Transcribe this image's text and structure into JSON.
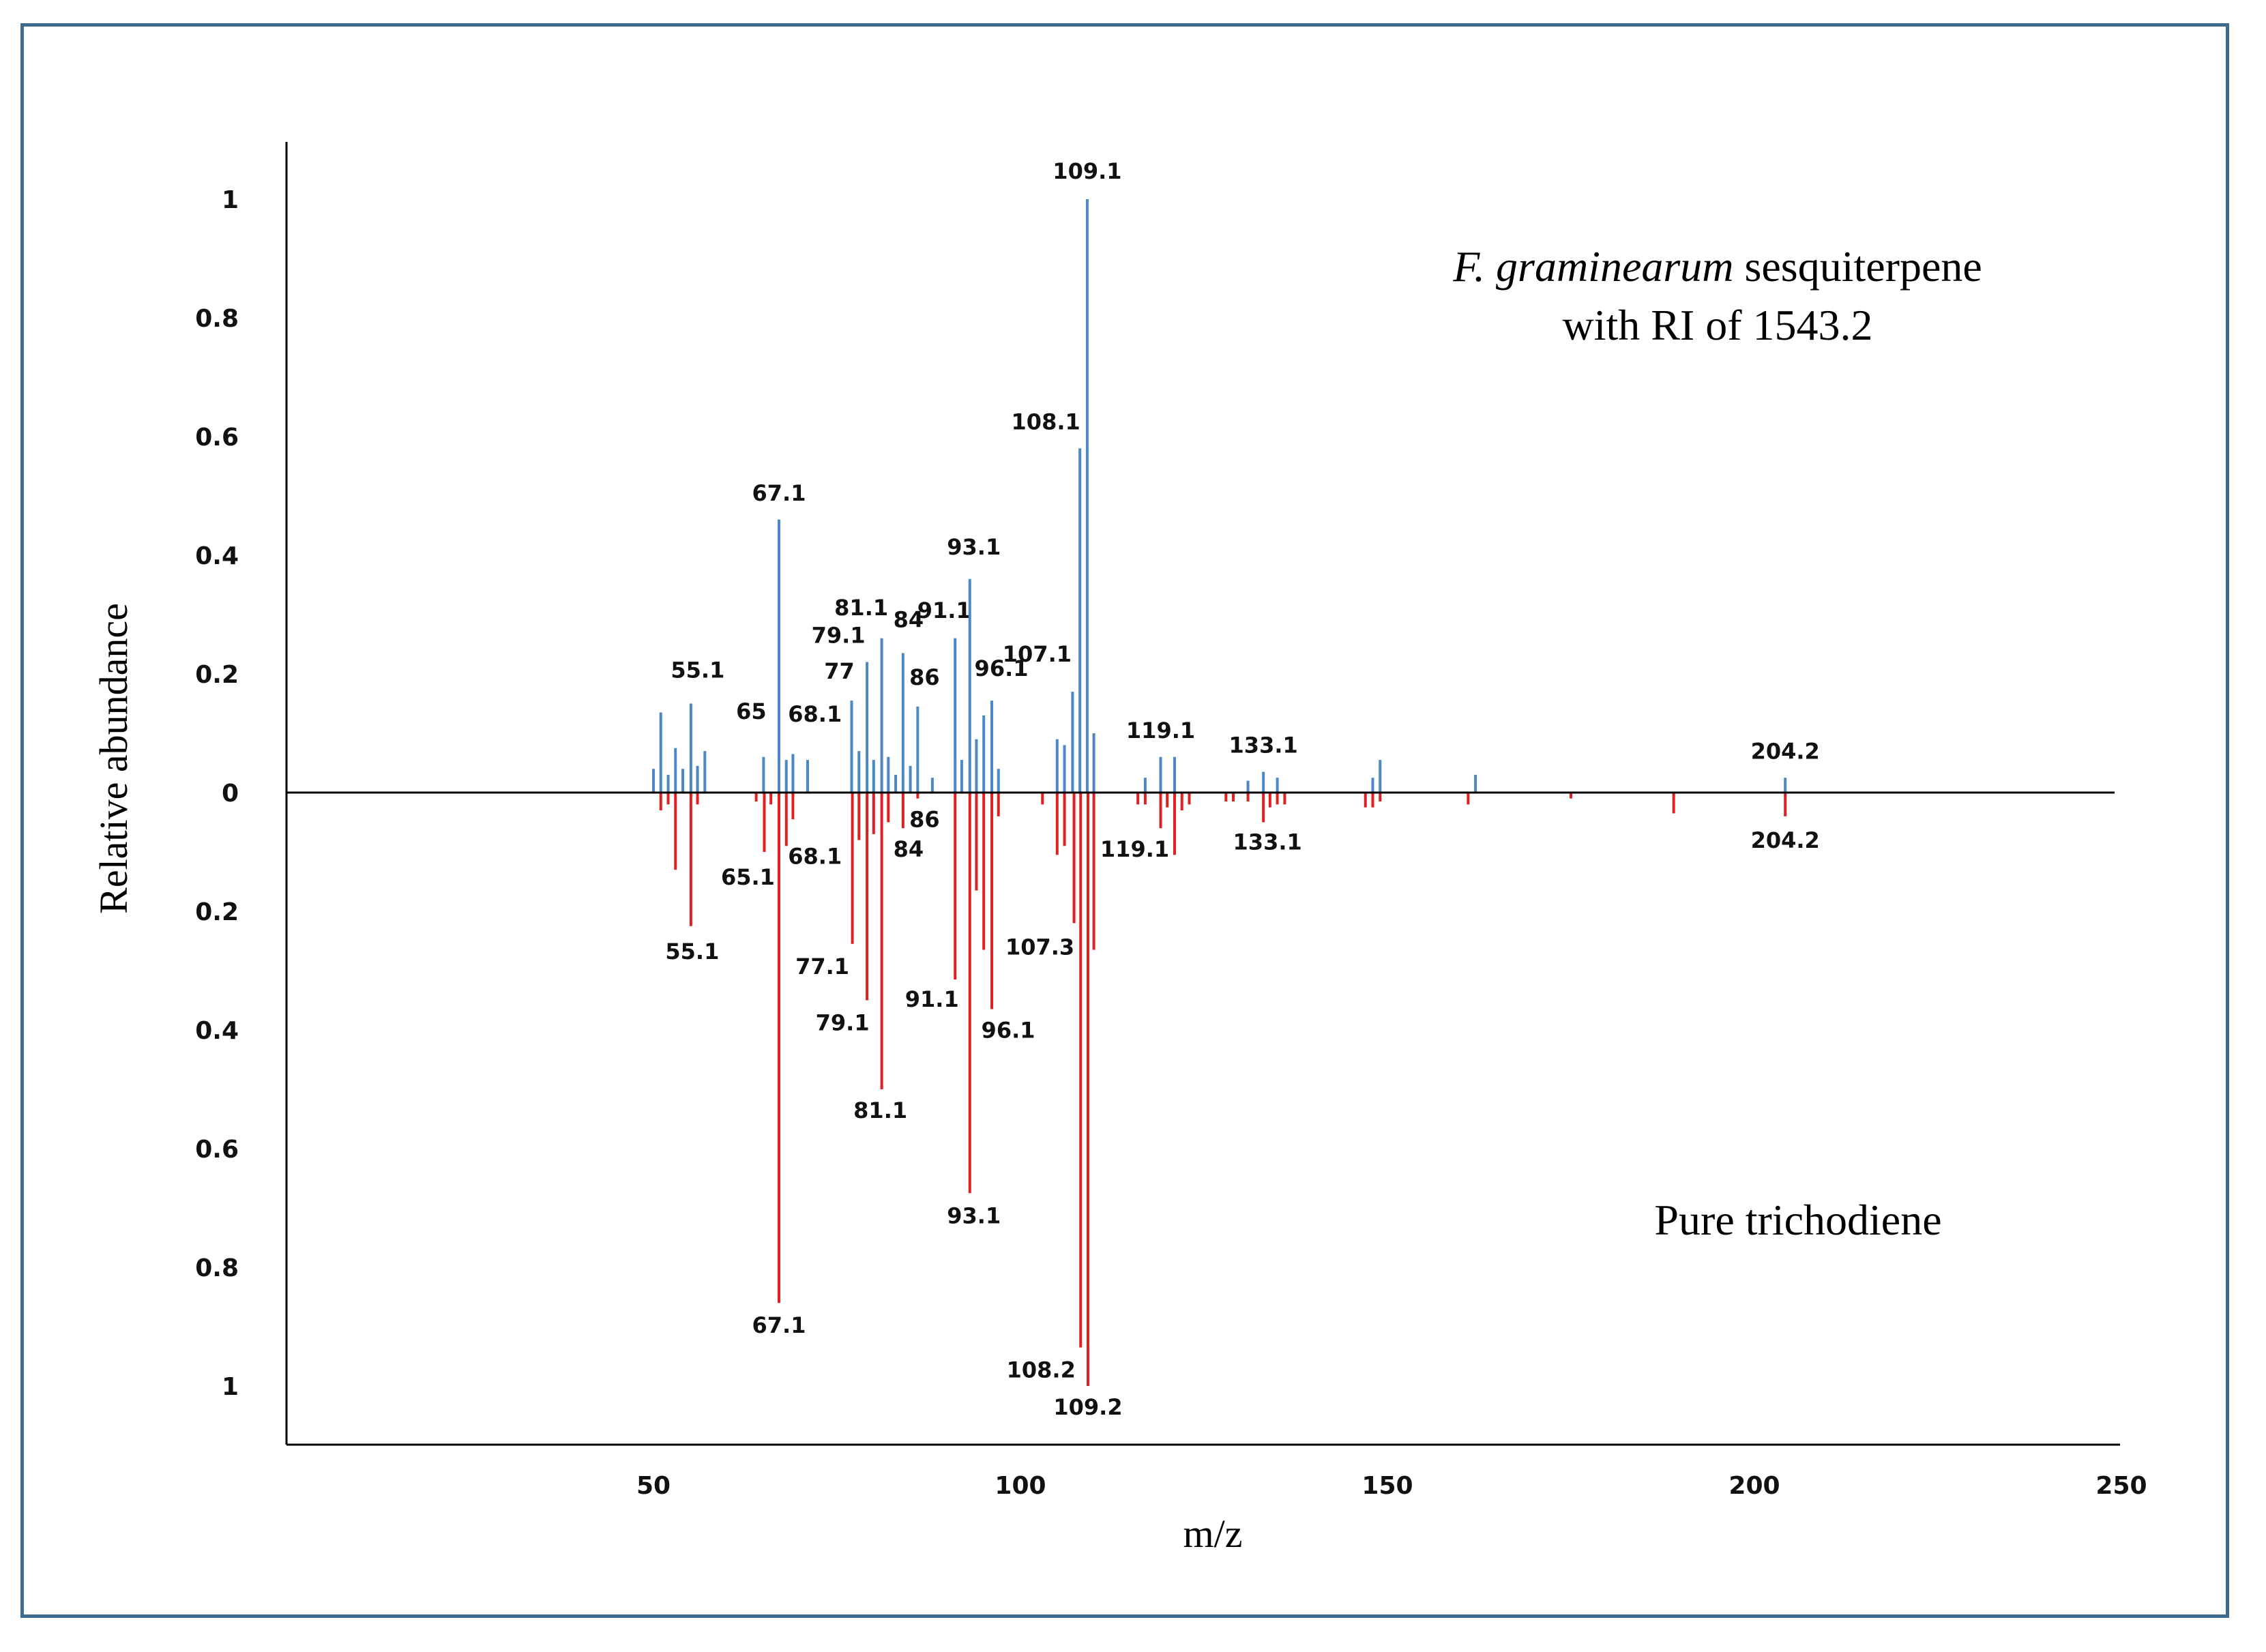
{
  "chart_data": {
    "type": "bar",
    "subtype": "mirror mass spectrum (stick plot)",
    "xlabel": "m/z",
    "ylabel": "Relative abundance",
    "xlim": [
      0,
      250
    ],
    "ylim": [
      -1,
      1
    ],
    "x_ticks": [
      "50",
      "100",
      "150",
      "200",
      "250"
    ],
    "x_tick_values": [
      50,
      100,
      150,
      200,
      250
    ],
    "y_ticks": [
      "1",
      "0.8",
      "0.6",
      "0.4",
      "0.2",
      "0",
      "0.2",
      "0.4",
      "0.6",
      "0.8",
      "1"
    ],
    "y_tick_values": [
      1,
      0.8,
      0.6,
      0.4,
      0.2,
      0,
      -0.2,
      -0.4,
      -0.6,
      -0.8,
      -1
    ],
    "colors": {
      "top": "#4a88c7",
      "bottom": "#e02020",
      "axis": "#000000"
    },
    "annotation_top": {
      "italic": "F. graminearum",
      "rest": " sesquiterpene",
      "line2": "with RI of 1543.2"
    },
    "annotation_bottom": "Pure trichodiene",
    "series": [
      {
        "name": "F. graminearum sesquiterpene with RI of 1543.2",
        "peaks": [
          {
            "x": 50,
            "y": 0.04
          },
          {
            "x": 51,
            "y": 0.135
          },
          {
            "x": 52,
            "y": 0.03
          },
          {
            "x": 53,
            "y": 0.075
          },
          {
            "x": 54,
            "y": 0.04
          },
          {
            "x": 55.1,
            "y": 0.15,
            "label": "55.1"
          },
          {
            "x": 56,
            "y": 0.045
          },
          {
            "x": 57,
            "y": 0.07
          },
          {
            "x": 65,
            "y": 0.06,
            "label": "65"
          },
          {
            "x": 67.1,
            "y": 0.46,
            "label": "67.1"
          },
          {
            "x": 68.1,
            "y": 0.055,
            "label": "68.1"
          },
          {
            "x": 69,
            "y": 0.065
          },
          {
            "x": 71,
            "y": 0.055
          },
          {
            "x": 77,
            "y": 0.155,
            "label": "77"
          },
          {
            "x": 78,
            "y": 0.07
          },
          {
            "x": 79.1,
            "y": 0.22,
            "label": "79.1"
          },
          {
            "x": 80,
            "y": 0.055
          },
          {
            "x": 81.1,
            "y": 0.26,
            "label": "81.1"
          },
          {
            "x": 82,
            "y": 0.06
          },
          {
            "x": 83,
            "y": 0.03
          },
          {
            "x": 84,
            "y": 0.235,
            "label": "84"
          },
          {
            "x": 85,
            "y": 0.045
          },
          {
            "x": 86,
            "y": 0.145,
            "label": "86"
          },
          {
            "x": 88,
            "y": 0.025
          },
          {
            "x": 91.1,
            "y": 0.26,
            "label": "91.1"
          },
          {
            "x": 92,
            "y": 0.055
          },
          {
            "x": 93.1,
            "y": 0.36,
            "label": "93.1"
          },
          {
            "x": 94,
            "y": 0.09
          },
          {
            "x": 95,
            "y": 0.13
          },
          {
            "x": 96.1,
            "y": 0.155,
            "label": "96.1"
          },
          {
            "x": 97,
            "y": 0.04
          },
          {
            "x": 105,
            "y": 0.09
          },
          {
            "x": 106,
            "y": 0.08
          },
          {
            "x": 107.1,
            "y": 0.17,
            "label": "107.1"
          },
          {
            "x": 108.1,
            "y": 0.58,
            "label": "108.1"
          },
          {
            "x": 109.1,
            "y": 1.0,
            "label": "109.1"
          },
          {
            "x": 110,
            "y": 0.1
          },
          {
            "x": 117,
            "y": 0.025
          },
          {
            "x": 119.1,
            "y": 0.06,
            "label": "119.1"
          },
          {
            "x": 121,
            "y": 0.06
          },
          {
            "x": 131,
            "y": 0.02
          },
          {
            "x": 133.1,
            "y": 0.035,
            "label": "133.1"
          },
          {
            "x": 135,
            "y": 0.025
          },
          {
            "x": 148,
            "y": 0.025
          },
          {
            "x": 149,
            "y": 0.055
          },
          {
            "x": 162,
            "y": 0.03
          },
          {
            "x": 204.2,
            "y": 0.025,
            "label": "204.2"
          }
        ]
      },
      {
        "name": "Pure trichodiene",
        "peaks": [
          {
            "x": 51,
            "y": 0.03
          },
          {
            "x": 52,
            "y": 0.02
          },
          {
            "x": 53,
            "y": 0.13
          },
          {
            "x": 55.1,
            "y": 0.225,
            "label": "55.1"
          },
          {
            "x": 56,
            "y": 0.02
          },
          {
            "x": 64,
            "y": 0.015
          },
          {
            "x": 65.1,
            "y": 0.1,
            "label": "65.1"
          },
          {
            "x": 66,
            "y": 0.02
          },
          {
            "x": 67.1,
            "y": 0.86,
            "label": "67.1"
          },
          {
            "x": 68.1,
            "y": 0.09,
            "label": "68.1"
          },
          {
            "x": 69,
            "y": 0.045
          },
          {
            "x": 77.1,
            "y": 0.255,
            "label": "77.1"
          },
          {
            "x": 78,
            "y": 0.08
          },
          {
            "x": 79.1,
            "y": 0.35,
            "label": "79.1"
          },
          {
            "x": 80,
            "y": 0.07
          },
          {
            "x": 81.1,
            "y": 0.5,
            "label": "81.1"
          },
          {
            "x": 82,
            "y": 0.05
          },
          {
            "x": 84,
            "y": 0.06,
            "label": "84"
          },
          {
            "x": 86,
            "y": 0.01,
            "label": "86"
          },
          {
            "x": 91.1,
            "y": 0.315,
            "label": "91.1"
          },
          {
            "x": 93.1,
            "y": 0.675,
            "label": "93.1"
          },
          {
            "x": 94,
            "y": 0.165
          },
          {
            "x": 95,
            "y": 0.265
          },
          {
            "x": 96.1,
            "y": 0.365,
            "label": "96.1"
          },
          {
            "x": 97,
            "y": 0.04
          },
          {
            "x": 103,
            "y": 0.02
          },
          {
            "x": 105,
            "y": 0.105
          },
          {
            "x": 106,
            "y": 0.09
          },
          {
            "x": 107.3,
            "y": 0.22,
            "label": "107.3"
          },
          {
            "x": 108.2,
            "y": 0.935,
            "label": "108.2"
          },
          {
            "x": 109.2,
            "y": 1.0,
            "label": "109.2"
          },
          {
            "x": 110,
            "y": 0.265
          },
          {
            "x": 116,
            "y": 0.02
          },
          {
            "x": 117,
            "y": 0.02
          },
          {
            "x": 119.1,
            "y": 0.06,
            "label": "119.1"
          },
          {
            "x": 120,
            "y": 0.025
          },
          {
            "x": 121,
            "y": 0.105
          },
          {
            "x": 122,
            "y": 0.03
          },
          {
            "x": 123,
            "y": 0.02
          },
          {
            "x": 128,
            "y": 0.015
          },
          {
            "x": 129,
            "y": 0.015
          },
          {
            "x": 131,
            "y": 0.015
          },
          {
            "x": 133.1,
            "y": 0.05,
            "label": "133.1"
          },
          {
            "x": 134,
            "y": 0.025
          },
          {
            "x": 135,
            "y": 0.02
          },
          {
            "x": 136,
            "y": 0.02
          },
          {
            "x": 147,
            "y": 0.025
          },
          {
            "x": 148,
            "y": 0.025
          },
          {
            "x": 149,
            "y": 0.015
          },
          {
            "x": 161,
            "y": 0.02
          },
          {
            "x": 175,
            "y": 0.01
          },
          {
            "x": 189,
            "y": 0.035
          },
          {
            "x": 204.2,
            "y": 0.04,
            "label": "204.2"
          }
        ]
      }
    ]
  }
}
